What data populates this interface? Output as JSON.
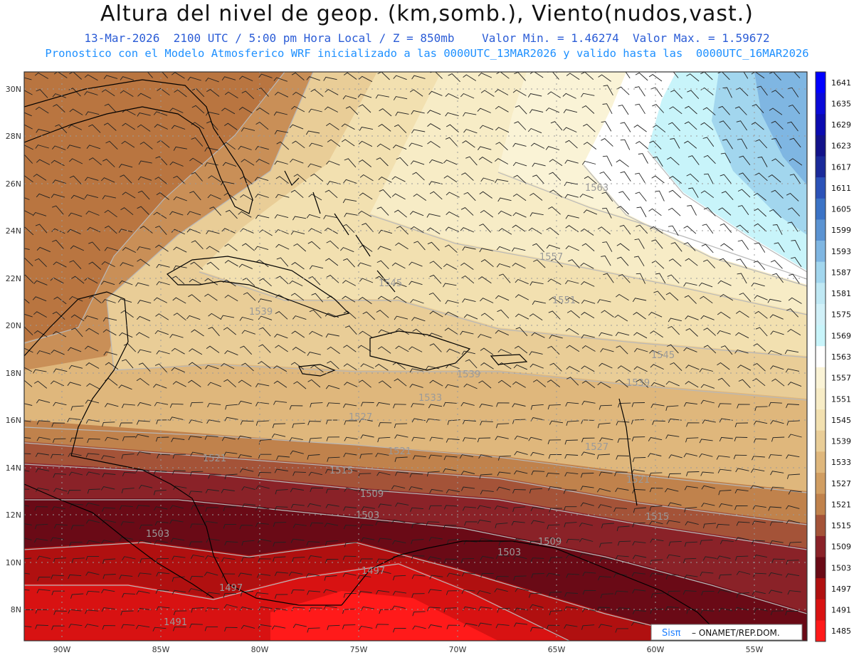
{
  "header": {
    "title": "Altura del nivel de geop. (km,somb.), Viento(nudos,vast.)",
    "line1": "13-Mar-2026  2100 UTC / 5:00 pm Hora Local / Z = 850mb    Valor Min. = 1.46274  Valor Max. = 1.59672",
    "line2": "Pronostico con el Modelo Atmosferico WRF inicializado a las 0000UTC_13MAR2026 y valido hasta las  0000UTC_16MAR2026"
  },
  "axes": {
    "lat_labels": [
      "30N",
      "28N",
      "26N",
      "24N",
      "22N",
      "20N",
      "18N",
      "16N",
      "14N",
      "12N",
      "10N",
      "8N"
    ],
    "lon_labels": [
      "90W",
      "85W",
      "80W",
      "75W",
      "70W",
      "65W",
      "60W",
      "55W"
    ]
  },
  "colorbar": {
    "labels": [
      "1641",
      "1635",
      "1629",
      "1623",
      "1617",
      "1611",
      "1605",
      "1599",
      "1593",
      "1587",
      "1581",
      "1575",
      "1569",
      "1563",
      "1557",
      "1551",
      "1545",
      "1539",
      "1533",
      "1527",
      "1521",
      "1515",
      "1509",
      "1503",
      "1497",
      "1491",
      "1485"
    ],
    "colors": [
      "#0000ff",
      "#0a0ad8",
      "#0b0bb0",
      "#12128a",
      "#1a2a9a",
      "#2b52b8",
      "#3b73c6",
      "#5b93d2",
      "#7fb6e2",
      "#a2d6ee",
      "#bfe8f4",
      "#d0f0f8",
      "#c8f4fa",
      "#ffffff",
      "#faf3d6",
      "#f7ecc6",
      "#f2e0b0",
      "#e9cd97",
      "#dfb77c",
      "#d19e62",
      "#c0824c",
      "#a45338",
      "#8a2228",
      "#6a0a16",
      "#b01010",
      "#d81212",
      "#ff1a1a"
    ]
  },
  "contour_labels": [
    "1563",
    "1557",
    "1551",
    "1545",
    "1545",
    "1539",
    "1539",
    "1539",
    "1533",
    "1527",
    "1527",
    "1521",
    "1521",
    "1521",
    "1515",
    "1515",
    "1509",
    "1509",
    "1503",
    "1503",
    "1503",
    "1497",
    "1497",
    "1491"
  ],
  "credit": {
    "logo": "Sisπ",
    "text": "– ONAMET/REP.DOM."
  }
}
